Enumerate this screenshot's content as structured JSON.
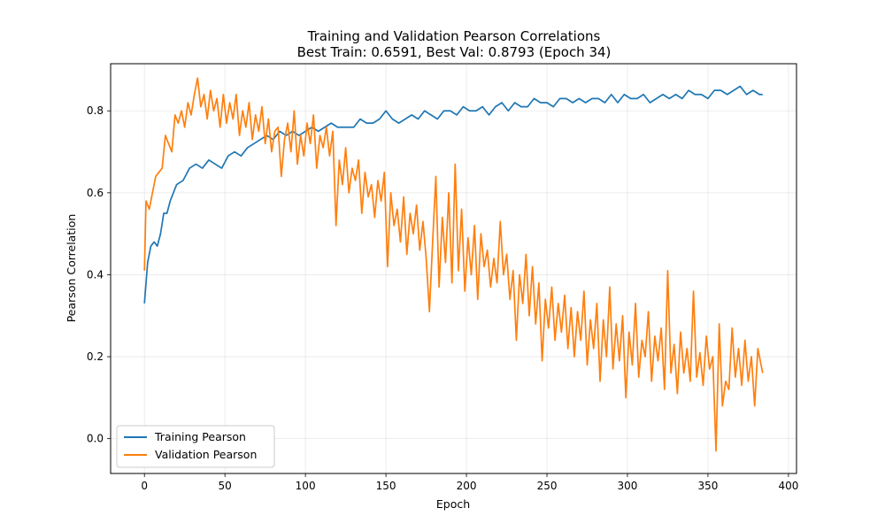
{
  "chart_data": {
    "type": "line",
    "title": "Training and Validation Pearson Correlations",
    "subtitle": "Best Train: 0.6591, Best Val: 0.8793 (Epoch 34)",
    "xlabel": "Epoch",
    "ylabel": "Pearson Correlation",
    "xlim": [
      -21,
      405
    ],
    "ylim": [
      -0.085,
      0.915
    ],
    "xticks": [
      0,
      50,
      100,
      150,
      200,
      250,
      300,
      350,
      400
    ],
    "yticks": [
      0.0,
      0.2,
      0.4,
      0.6,
      0.8
    ],
    "ytick_labels": [
      "0.0",
      "0.2",
      "0.4",
      "0.6",
      "0.8"
    ],
    "grid": true,
    "legend_position": "lower-left",
    "series": [
      {
        "name": "Training Pearson",
        "color": "#1f77b4",
        "points": [
          [
            0,
            0.33
          ],
          [
            2,
            0.43
          ],
          [
            4,
            0.47
          ],
          [
            6,
            0.48
          ],
          [
            8,
            0.47
          ],
          [
            10,
            0.5
          ],
          [
            12,
            0.55
          ],
          [
            14,
            0.55
          ],
          [
            16,
            0.58
          ],
          [
            18,
            0.6
          ],
          [
            20,
            0.62
          ],
          [
            24,
            0.63
          ],
          [
            28,
            0.66
          ],
          [
            32,
            0.67
          ],
          [
            36,
            0.66
          ],
          [
            40,
            0.68
          ],
          [
            44,
            0.67
          ],
          [
            48,
            0.66
          ],
          [
            52,
            0.69
          ],
          [
            56,
            0.7
          ],
          [
            60,
            0.69
          ],
          [
            64,
            0.71
          ],
          [
            68,
            0.72
          ],
          [
            72,
            0.73
          ],
          [
            76,
            0.74
          ],
          [
            80,
            0.73
          ],
          [
            84,
            0.75
          ],
          [
            88,
            0.74
          ],
          [
            92,
            0.75
          ],
          [
            96,
            0.74
          ],
          [
            100,
            0.75
          ],
          [
            104,
            0.76
          ],
          [
            108,
            0.75
          ],
          [
            112,
            0.76
          ],
          [
            116,
            0.77
          ],
          [
            120,
            0.76
          ],
          [
            126,
            0.76
          ],
          [
            130,
            0.76
          ],
          [
            134,
            0.78
          ],
          [
            138,
            0.77
          ],
          [
            142,
            0.77
          ],
          [
            146,
            0.78
          ],
          [
            150,
            0.8
          ],
          [
            154,
            0.78
          ],
          [
            158,
            0.77
          ],
          [
            162,
            0.78
          ],
          [
            166,
            0.79
          ],
          [
            170,
            0.78
          ],
          [
            174,
            0.8
          ],
          [
            178,
            0.79
          ],
          [
            182,
            0.78
          ],
          [
            186,
            0.8
          ],
          [
            190,
            0.8
          ],
          [
            194,
            0.79
          ],
          [
            198,
            0.81
          ],
          [
            202,
            0.8
          ],
          [
            206,
            0.8
          ],
          [
            210,
            0.81
          ],
          [
            214,
            0.79
          ],
          [
            218,
            0.81
          ],
          [
            222,
            0.82
          ],
          [
            226,
            0.8
          ],
          [
            230,
            0.82
          ],
          [
            234,
            0.81
          ],
          [
            238,
            0.81
          ],
          [
            242,
            0.83
          ],
          [
            246,
            0.82
          ],
          [
            250,
            0.82
          ],
          [
            254,
            0.81
          ],
          [
            258,
            0.83
          ],
          [
            262,
            0.83
          ],
          [
            266,
            0.82
          ],
          [
            270,
            0.83
          ],
          [
            274,
            0.82
          ],
          [
            278,
            0.83
          ],
          [
            282,
            0.83
          ],
          [
            286,
            0.82
          ],
          [
            290,
            0.84
          ],
          [
            294,
            0.82
          ],
          [
            298,
            0.84
          ],
          [
            302,
            0.83
          ],
          [
            306,
            0.83
          ],
          [
            310,
            0.84
          ],
          [
            314,
            0.82
          ],
          [
            318,
            0.83
          ],
          [
            322,
            0.84
          ],
          [
            326,
            0.83
          ],
          [
            330,
            0.84
          ],
          [
            334,
            0.83
          ],
          [
            338,
            0.85
          ],
          [
            342,
            0.84
          ],
          [
            346,
            0.84
          ],
          [
            350,
            0.83
          ],
          [
            354,
            0.85
          ],
          [
            358,
            0.85
          ],
          [
            362,
            0.84
          ],
          [
            366,
            0.85
          ],
          [
            370,
            0.86
          ],
          [
            374,
            0.84
          ],
          [
            378,
            0.85
          ],
          [
            382,
            0.84
          ],
          [
            384,
            0.84
          ]
        ]
      },
      {
        "name": "Validation Pearson",
        "color": "#ff7f0e",
        "points": [
          [
            0,
            0.41
          ],
          [
            1,
            0.58
          ],
          [
            3,
            0.56
          ],
          [
            5,
            0.6
          ],
          [
            7,
            0.64
          ],
          [
            9,
            0.65
          ],
          [
            11,
            0.66
          ],
          [
            13,
            0.74
          ],
          [
            15,
            0.72
          ],
          [
            17,
            0.7
          ],
          [
            19,
            0.79
          ],
          [
            21,
            0.77
          ],
          [
            23,
            0.8
          ],
          [
            25,
            0.76
          ],
          [
            27,
            0.82
          ],
          [
            29,
            0.79
          ],
          [
            31,
            0.84
          ],
          [
            33,
            0.88
          ],
          [
            35,
            0.81
          ],
          [
            37,
            0.84
          ],
          [
            39,
            0.78
          ],
          [
            41,
            0.85
          ],
          [
            43,
            0.8
          ],
          [
            45,
            0.83
          ],
          [
            47,
            0.76
          ],
          [
            49,
            0.84
          ],
          [
            51,
            0.77
          ],
          [
            53,
            0.82
          ],
          [
            55,
            0.78
          ],
          [
            57,
            0.84
          ],
          [
            59,
            0.74
          ],
          [
            61,
            0.8
          ],
          [
            63,
            0.76
          ],
          [
            65,
            0.82
          ],
          [
            67,
            0.73
          ],
          [
            69,
            0.79
          ],
          [
            71,
            0.75
          ],
          [
            73,
            0.81
          ],
          [
            75,
            0.72
          ],
          [
            77,
            0.78
          ],
          [
            79,
            0.7
          ],
          [
            81,
            0.75
          ],
          [
            83,
            0.76
          ],
          [
            85,
            0.64
          ],
          [
            87,
            0.73
          ],
          [
            89,
            0.77
          ],
          [
            91,
            0.7
          ],
          [
            93,
            0.8
          ],
          [
            95,
            0.67
          ],
          [
            97,
            0.74
          ],
          [
            99,
            0.69
          ],
          [
            101,
            0.77
          ],
          [
            103,
            0.72
          ],
          [
            105,
            0.79
          ],
          [
            107,
            0.66
          ],
          [
            109,
            0.74
          ],
          [
            111,
            0.71
          ],
          [
            113,
            0.76
          ],
          [
            115,
            0.69
          ],
          [
            117,
            0.75
          ],
          [
            119,
            0.52
          ],
          [
            121,
            0.68
          ],
          [
            123,
            0.62
          ],
          [
            125,
            0.71
          ],
          [
            127,
            0.6
          ],
          [
            129,
            0.66
          ],
          [
            131,
            0.63
          ],
          [
            133,
            0.68
          ],
          [
            135,
            0.55
          ],
          [
            137,
            0.65
          ],
          [
            139,
            0.59
          ],
          [
            141,
            0.62
          ],
          [
            143,
            0.54
          ],
          [
            145,
            0.63
          ],
          [
            147,
            0.58
          ],
          [
            149,
            0.65
          ],
          [
            151,
            0.42
          ],
          [
            153,
            0.6
          ],
          [
            155,
            0.52
          ],
          [
            157,
            0.56
          ],
          [
            159,
            0.48
          ],
          [
            161,
            0.59
          ],
          [
            163,
            0.45
          ],
          [
            165,
            0.55
          ],
          [
            167,
            0.5
          ],
          [
            169,
            0.57
          ],
          [
            171,
            0.46
          ],
          [
            173,
            0.53
          ],
          [
            175,
            0.44
          ],
          [
            177,
            0.31
          ],
          [
            179,
            0.48
          ],
          [
            181,
            0.64
          ],
          [
            183,
            0.37
          ],
          [
            185,
            0.54
          ],
          [
            187,
            0.43
          ],
          [
            189,
            0.6
          ],
          [
            191,
            0.38
          ],
          [
            193,
            0.67
          ],
          [
            195,
            0.41
          ],
          [
            197,
            0.56
          ],
          [
            199,
            0.36
          ],
          [
            201,
            0.49
          ],
          [
            203,
            0.4
          ],
          [
            205,
            0.52
          ],
          [
            207,
            0.34
          ],
          [
            209,
            0.5
          ],
          [
            211,
            0.42
          ],
          [
            213,
            0.46
          ],
          [
            215,
            0.37
          ],
          [
            217,
            0.44
          ],
          [
            219,
            0.38
          ],
          [
            221,
            0.53
          ],
          [
            223,
            0.4
          ],
          [
            225,
            0.45
          ],
          [
            227,
            0.34
          ],
          [
            229,
            0.41
          ],
          [
            231,
            0.24
          ],
          [
            233,
            0.4
          ],
          [
            235,
            0.33
          ],
          [
            237,
            0.45
          ],
          [
            239,
            0.3
          ],
          [
            241,
            0.42
          ],
          [
            243,
            0.28
          ],
          [
            245,
            0.38
          ],
          [
            247,
            0.19
          ],
          [
            249,
            0.34
          ],
          [
            251,
            0.27
          ],
          [
            253,
            0.37
          ],
          [
            255,
            0.24
          ],
          [
            257,
            0.33
          ],
          [
            259,
            0.26
          ],
          [
            261,
            0.35
          ],
          [
            263,
            0.22
          ],
          [
            265,
            0.32
          ],
          [
            267,
            0.2
          ],
          [
            269,
            0.31
          ],
          [
            271,
            0.24
          ],
          [
            273,
            0.36
          ],
          [
            275,
            0.18
          ],
          [
            277,
            0.29
          ],
          [
            279,
            0.22
          ],
          [
            281,
            0.33
          ],
          [
            283,
            0.14
          ],
          [
            285,
            0.29
          ],
          [
            287,
            0.2
          ],
          [
            289,
            0.37
          ],
          [
            291,
            0.17
          ],
          [
            293,
            0.28
          ],
          [
            295,
            0.19
          ],
          [
            297,
            0.3
          ],
          [
            299,
            0.1
          ],
          [
            301,
            0.26
          ],
          [
            303,
            0.18
          ],
          [
            305,
            0.33
          ],
          [
            307,
            0.15
          ],
          [
            309,
            0.24
          ],
          [
            311,
            0.2
          ],
          [
            313,
            0.31
          ],
          [
            315,
            0.14
          ],
          [
            317,
            0.25
          ],
          [
            319,
            0.19
          ],
          [
            321,
            0.27
          ],
          [
            323,
            0.12
          ],
          [
            325,
            0.41
          ],
          [
            327,
            0.16
          ],
          [
            329,
            0.23
          ],
          [
            331,
            0.11
          ],
          [
            333,
            0.26
          ],
          [
            335,
            0.16
          ],
          [
            337,
            0.22
          ],
          [
            339,
            0.14
          ],
          [
            341,
            0.36
          ],
          [
            343,
            0.15
          ],
          [
            345,
            0.21
          ],
          [
            347,
            0.13
          ],
          [
            349,
            0.25
          ],
          [
            351,
            0.17
          ],
          [
            353,
            0.2
          ],
          [
            355,
            -0.03
          ],
          [
            357,
            0.28
          ],
          [
            359,
            0.08
          ],
          [
            361,
            0.14
          ],
          [
            363,
            0.12
          ],
          [
            365,
            0.27
          ],
          [
            367,
            0.15
          ],
          [
            369,
            0.22
          ],
          [
            371,
            0.13
          ],
          [
            373,
            0.24
          ],
          [
            375,
            0.14
          ],
          [
            377,
            0.2
          ],
          [
            379,
            0.08
          ],
          [
            381,
            0.22
          ],
          [
            383,
            0.18
          ],
          [
            384,
            0.16
          ]
        ]
      }
    ]
  }
}
